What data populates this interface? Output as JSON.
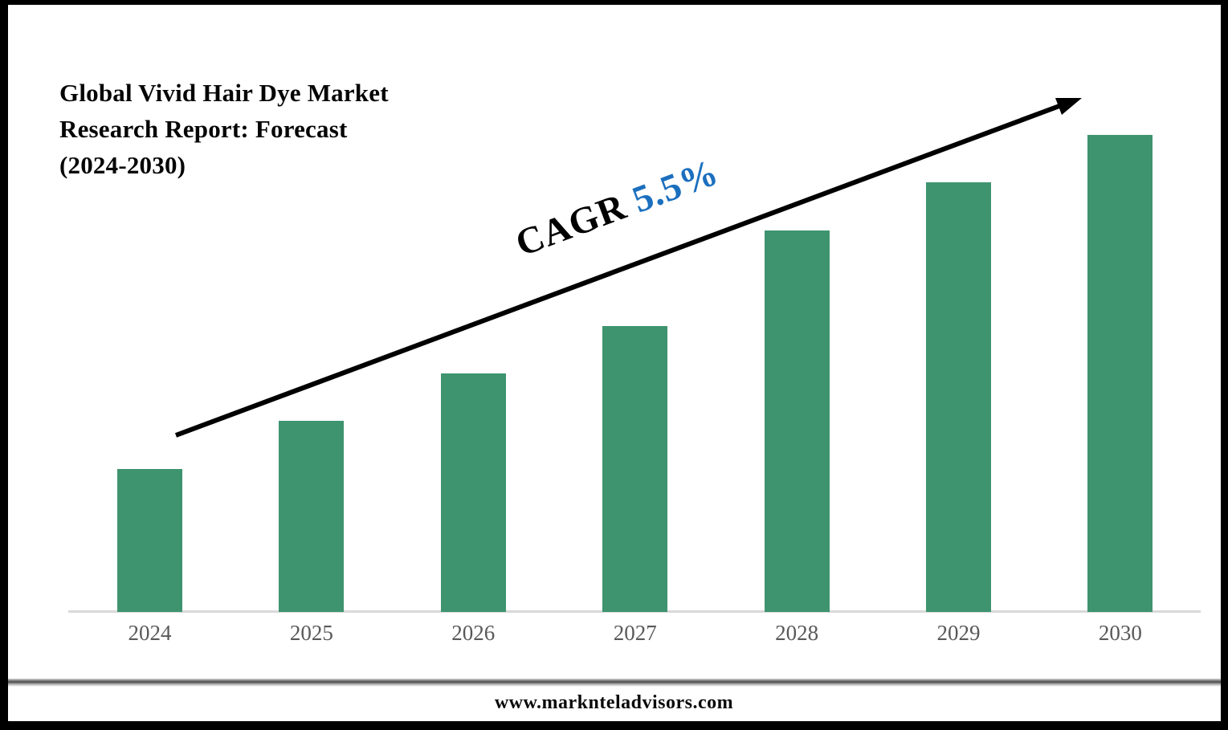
{
  "header": {
    "title_lines": [
      "Global Vivid Hair Dye Market",
      "Research Report: Forecast",
      "(2024-2030)"
    ]
  },
  "cagr": {
    "label": "CAGR",
    "value": "5.5%"
  },
  "footer": {
    "url": "www.marknteladvisors.com"
  },
  "colors": {
    "bar": "#3E946F",
    "cagr_value": "#1B6FBE",
    "tick_label": "#595959",
    "axis_line": "#D9D9D9",
    "arrow": "#000000",
    "frame": "#000000"
  },
  "chart_data": {
    "type": "bar",
    "title": "Global Vivid Hair Dye Market Research Report: Forecast (2024-2030)",
    "categories": [
      "2024",
      "2025",
      "2026",
      "2027",
      "2028",
      "2029",
      "2030"
    ],
    "values": [
      30,
      40,
      50,
      60,
      80,
      90,
      100
    ],
    "values_note": "relative market-size index read from bar heights; no y-axis values shown",
    "xlabel": "",
    "ylabel": "",
    "ylim": [
      0,
      100
    ],
    "grid": false,
    "legend": false,
    "annotations": [
      "CAGR 5.5%"
    ],
    "bar_color": "#3E946F"
  }
}
